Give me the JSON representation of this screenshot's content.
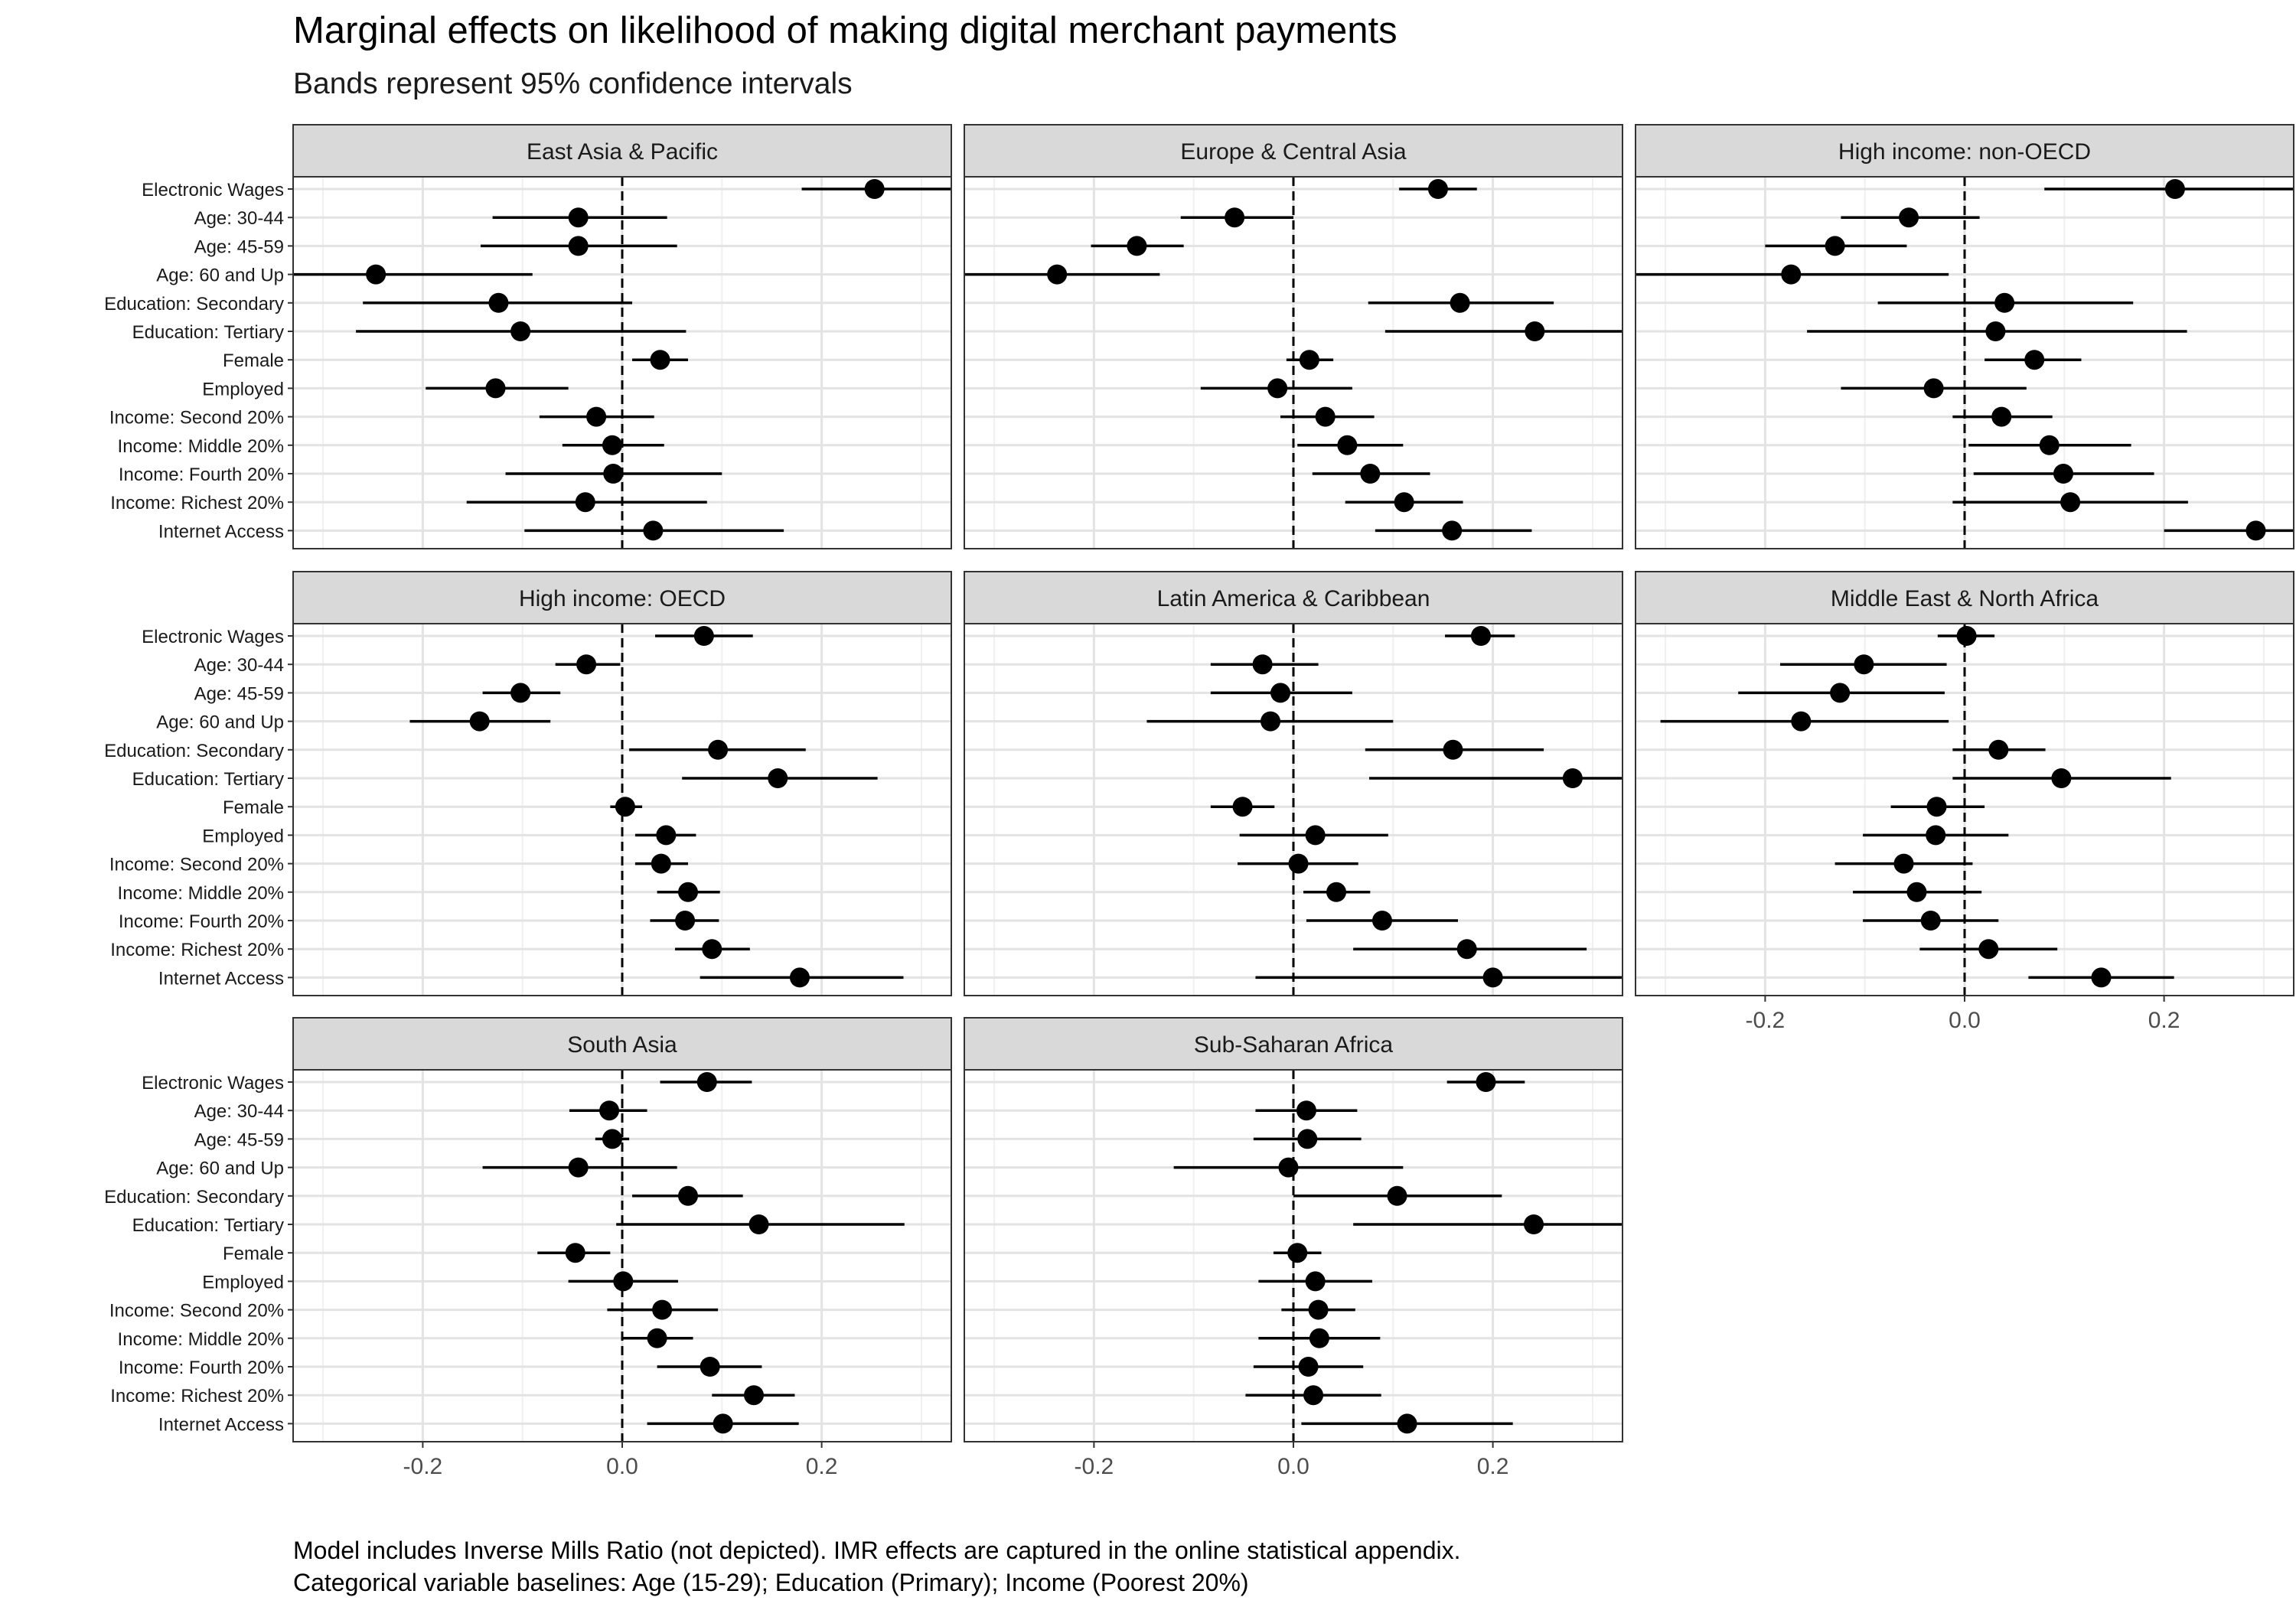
{
  "title": "Marginal effects on likelihood of making digital merchant payments",
  "subtitle": "Bands represent 95% confidence intervals",
  "caption": [
    "Model includes Inverse Mills Ratio (not depicted). IMR effects are captured in the online statistical appendix.",
    "Categorical variable baselines: Age (15-29); Education (Primary); Income (Poorest 20%)"
  ],
  "chart_data": {
    "type": "scatter",
    "subtype": "faceted coefficient plot with 95% confidence interval bands",
    "x_ticks": [
      -0.2,
      0.0,
      0.2
    ],
    "x_tick_labels": [
      "-0.2",
      "0.0",
      "0.2"
    ],
    "xlim": [
      -0.33,
      0.33
    ],
    "reference_line": 0,
    "grid": true,
    "variables": [
      "Electronic Wages",
      "Age: 30-44",
      "Age: 45-59",
      "Age: 60 and Up",
      "Education: Secondary",
      "Education: Tertiary",
      "Female",
      "Employed",
      "Income: Second 20%",
      "Income: Middle 20%",
      "Income: Fourth 20%",
      "Income: Richest 20%",
      "Internet Access"
    ],
    "facets": [
      {
        "name": "East Asia & Pacific",
        "estimate": [
          0.253,
          -0.044,
          -0.044,
          -0.247,
          -0.124,
          -0.102,
          0.038,
          -0.127,
          -0.026,
          -0.01,
          -0.009,
          -0.037,
          0.031
        ],
        "lower": [
          0.18,
          -0.13,
          -0.142,
          -0.35,
          -0.26,
          -0.267,
          0.01,
          -0.197,
          -0.083,
          -0.06,
          -0.117,
          -0.156,
          -0.098
        ],
        "upper": [
          0.33,
          0.045,
          0.055,
          -0.09,
          0.01,
          0.064,
          0.066,
          -0.054,
          0.032,
          0.042,
          0.1,
          0.085,
          0.162
        ]
      },
      {
        "name": "Europe & Central Asia",
        "estimate": [
          0.145,
          -0.059,
          -0.157,
          -0.237,
          0.167,
          0.242,
          0.016,
          -0.016,
          0.032,
          0.054,
          0.077,
          0.111,
          0.159
        ],
        "lower": [
          0.106,
          -0.113,
          -0.203,
          -0.35,
          0.075,
          0.092,
          -0.007,
          -0.093,
          -0.013,
          0.004,
          0.019,
          0.052,
          0.082
        ],
        "upper": [
          0.184,
          0.0,
          -0.11,
          -0.134,
          0.261,
          0.35,
          0.04,
          0.059,
          0.081,
          0.11,
          0.137,
          0.17,
          0.239
        ]
      },
      {
        "name": "High income: non-OECD",
        "estimate": [
          0.211,
          -0.056,
          -0.13,
          -0.174,
          0.04,
          0.031,
          0.07,
          -0.031,
          0.037,
          0.085,
          0.099,
          0.106,
          0.292
        ],
        "lower": [
          0.08,
          -0.124,
          -0.2,
          -0.35,
          -0.087,
          -0.158,
          0.02,
          -0.124,
          -0.012,
          0.004,
          0.009,
          -0.012,
          0.2
        ],
        "upper": [
          0.35,
          0.015,
          -0.058,
          -0.016,
          0.169,
          0.223,
          0.117,
          0.062,
          0.088,
          0.167,
          0.19,
          0.224,
          0.35
        ]
      },
      {
        "name": "High income: OECD",
        "estimate": [
          0.082,
          -0.036,
          -0.102,
          -0.143,
          0.096,
          0.156,
          0.003,
          0.044,
          0.039,
          0.066,
          0.063,
          0.09,
          0.178
        ],
        "lower": [
          0.033,
          -0.067,
          -0.14,
          -0.213,
          0.007,
          0.06,
          -0.012,
          0.013,
          0.013,
          0.035,
          0.028,
          0.053,
          0.078
        ],
        "upper": [
          0.131,
          -0.002,
          -0.062,
          -0.072,
          0.184,
          0.256,
          0.02,
          0.074,
          0.066,
          0.098,
          0.097,
          0.128,
          0.282
        ]
      },
      {
        "name": "Latin America & Caribbean",
        "estimate": [
          0.188,
          -0.031,
          -0.013,
          -0.023,
          0.16,
          0.28,
          -0.051,
          0.022,
          0.005,
          0.043,
          0.089,
          0.174,
          0.2
        ],
        "lower": [
          0.152,
          -0.083,
          -0.083,
          -0.147,
          0.072,
          0.076,
          -0.083,
          -0.054,
          -0.056,
          0.01,
          0.013,
          0.06,
          -0.038
        ],
        "upper": [
          0.222,
          0.025,
          0.059,
          0.1,
          0.251,
          0.35,
          -0.019,
          0.095,
          0.065,
          0.077,
          0.165,
          0.294,
          0.35
        ]
      },
      {
        "name": "Middle East & North Africa",
        "estimate": [
          0.002,
          -0.101,
          -0.125,
          -0.164,
          0.034,
          0.097,
          -0.028,
          -0.029,
          -0.061,
          -0.048,
          -0.034,
          0.024,
          0.137
        ],
        "lower": [
          -0.027,
          -0.185,
          -0.227,
          -0.305,
          -0.012,
          -0.012,
          -0.074,
          -0.102,
          -0.13,
          -0.112,
          -0.102,
          -0.045,
          0.064
        ],
        "upper": [
          0.03,
          -0.018,
          -0.02,
          -0.016,
          0.081,
          0.207,
          0.02,
          0.044,
          0.008,
          0.017,
          0.034,
          0.093,
          0.21
        ]
      },
      {
        "name": "South Asia",
        "estimate": [
          0.085,
          -0.013,
          -0.01,
          -0.044,
          0.066,
          0.137,
          -0.047,
          0.001,
          0.04,
          0.035,
          0.088,
          0.132,
          0.101
        ],
        "lower": [
          0.038,
          -0.053,
          -0.027,
          -0.14,
          0.01,
          -0.006,
          -0.085,
          -0.054,
          -0.015,
          0.0,
          0.035,
          0.09,
          0.025
        ],
        "upper": [
          0.13,
          0.025,
          0.007,
          0.055,
          0.121,
          0.283,
          -0.012,
          0.056,
          0.096,
          0.071,
          0.14,
          0.173,
          0.177
        ]
      },
      {
        "name": "Sub-Saharan Africa",
        "estimate": [
          0.193,
          0.013,
          0.014,
          -0.005,
          0.104,
          0.241,
          0.004,
          0.022,
          0.025,
          0.026,
          0.015,
          0.02,
          0.114
        ],
        "lower": [
          0.154,
          -0.038,
          -0.04,
          -0.12,
          0.0,
          0.06,
          -0.02,
          -0.035,
          -0.012,
          -0.035,
          -0.04,
          -0.048,
          0.008
        ],
        "upper": [
          0.232,
          0.064,
          0.068,
          0.11,
          0.209,
          0.35,
          0.028,
          0.079,
          0.062,
          0.087,
          0.07,
          0.088,
          0.22
        ]
      }
    ]
  }
}
